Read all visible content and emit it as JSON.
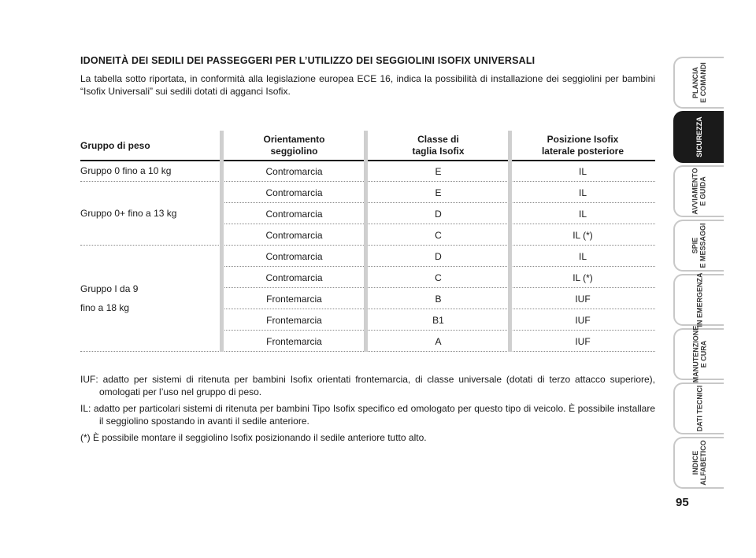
{
  "heading": "IDONEITÀ DEI SEDILI DEI PASSEGGERI PER L’UTILIZZO DEI SEGGIOLINI ISOFIX UNIVERSALI",
  "intro": "La tabella sotto riportata, in conformità alla legislazione europea ECE 16, indica la possibilità di installazione dei seggiolini per bambini “Isofix Universali” sui sedili dotati di agganci Isofix.",
  "table": {
    "headers": [
      "Gruppo di peso",
      "Orientamento\nseggiolino",
      "Classe di\ntaglia Isofix",
      "Posizione Isofix\nlaterale posteriore"
    ],
    "groups": [
      {
        "label_lines": [
          "Gruppo 0 fino a 10 kg"
        ]
      },
      {
        "label_lines": [
          "Gruppo 0+ fino a 13 kg"
        ]
      },
      {
        "label_lines": [
          "Gruppo I da 9",
          "fino a 18 kg"
        ]
      }
    ],
    "rows": [
      [
        "Contromarcia",
        "E",
        "IL"
      ],
      [
        "Contromarcia",
        "E",
        "IL"
      ],
      [
        "Contromarcia",
        "D",
        "IL"
      ],
      [
        "Contromarcia",
        "C",
        "IL (*)"
      ],
      [
        "Contromarcia",
        "D",
        "IL"
      ],
      [
        "Contromarcia",
        "C",
        "IL (*)"
      ],
      [
        "Frontemarcia",
        "B",
        "IUF"
      ],
      [
        "Frontemarcia",
        "B1",
        "IUF"
      ],
      [
        "Frontemarcia",
        "A",
        "IUF"
      ]
    ]
  },
  "notes": [
    "IUF: adatto per sistemi di ritenuta per bambini Isofix orientati frontemarcia, di classe universale (dotati di terzo attacco superiore), omologati per l’uso nel gruppo di peso.",
    "IL: adatto per particolari sistemi di ritenuta per bambini Tipo Isofix specifico ed omologato per questo tipo di veicolo. È possibile installare il seggiolino spostando in avanti il sedile anteriore.",
    "(*) È possibile montare il seggiolino Isofix posizionando il sedile anteriore tutto alto."
  ],
  "side_tabs": [
    {
      "label": "PLANCIA\nE COMANDI",
      "active": false
    },
    {
      "label": "SICUREZZA",
      "active": true
    },
    {
      "label": "AVVIAMENTO\nE GUIDA",
      "active": false
    },
    {
      "label": "SPIE\nE MESSAGGI",
      "active": false
    },
    {
      "label": "IN EMERGENZA",
      "active": false
    },
    {
      "label": "MANUTENZIONE\nE CURA",
      "active": false
    },
    {
      "label": "DATI TECNICI",
      "active": false
    },
    {
      "label": "INDICE\nALFABETICO",
      "active": false
    }
  ],
  "page_number": "95"
}
